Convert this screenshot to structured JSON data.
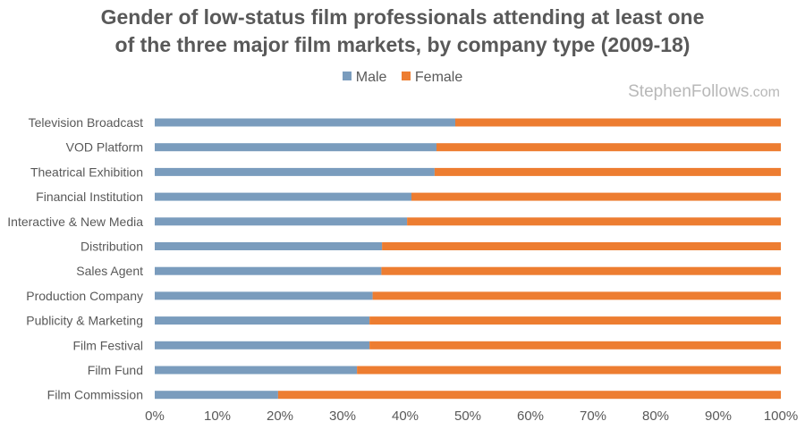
{
  "chart_data": {
    "type": "bar",
    "orientation": "horizontal",
    "stacked": true,
    "title_lines": [
      "Gender of low-status film professionals attending at least one",
      "of the three major film markets, by company type (2009-18)"
    ],
    "categories": [
      "Television Broadcast",
      "VOD Platform",
      "Theatrical Exhibition",
      "Financial Institution",
      "Interactive & New Media",
      "Distribution",
      "Sales Agent",
      "Production Company",
      "Publicity & Marketing",
      "Film Festival",
      "Film Fund",
      "Film Commission"
    ],
    "series": [
      {
        "name": "Male",
        "color": "#7a9cbd",
        "values": [
          48,
          45,
          44.7,
          41,
          40.3,
          36.3,
          36.2,
          34.8,
          34.3,
          34.3,
          32.3,
          19.7
        ]
      },
      {
        "name": "Female",
        "color": "#ed7d31",
        "values": [
          52,
          55,
          55.3,
          59,
          59.7,
          63.7,
          63.8,
          65.2,
          65.7,
          65.7,
          67.7,
          80.3
        ]
      }
    ],
    "x_ticks": [
      "0%",
      "10%",
      "20%",
      "30%",
      "40%",
      "50%",
      "60%",
      "70%",
      "80%",
      "90%",
      "100%"
    ],
    "xlim": [
      0,
      100
    ],
    "legend_position": "top",
    "grid": false
  },
  "watermark": {
    "name": "StephenFollows",
    "suffix": ".com"
  }
}
